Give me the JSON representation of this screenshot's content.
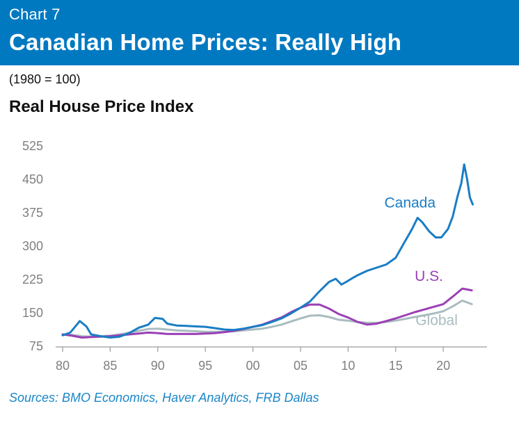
{
  "header": {
    "chart_number": "Chart 7",
    "title": "Canadian Home Prices: Really High"
  },
  "base_note": "(1980 = 100)",
  "subtitle": "Real House Price Index",
  "source": "Sources: BMO Economics, Haver Analytics, FRB Dallas",
  "colors": {
    "header_bg": "#0079c1",
    "canada": "#1a7dc4",
    "us": "#9b3fb5",
    "global": "#a9bcbf",
    "axis_text": "#7f7f7f"
  },
  "chart_data": {
    "type": "line",
    "title": "Real House Price Index",
    "ylim": [
      75,
      525
    ],
    "xlim": [
      1980,
      2023.5
    ],
    "yticks": [
      75,
      150,
      225,
      300,
      375,
      450,
      525
    ],
    "ytick_labels": [
      "75",
      "150",
      "225",
      "300",
      "375",
      "450",
      "525"
    ],
    "xticks": [
      1980,
      1985,
      1990,
      1995,
      2000,
      2005,
      2010,
      2015,
      2020
    ],
    "xtick_labels": [
      "80",
      "85",
      "90",
      "95",
      "00",
      "05",
      "10",
      "15",
      "20"
    ],
    "grid": false,
    "series": [
      {
        "name": "Canada",
        "label_year": 2016.5,
        "label_value": 385,
        "points": [
          [
            1980,
            98
          ],
          [
            1980.8,
            104
          ],
          [
            1981.5,
            122
          ],
          [
            1981.8,
            130
          ],
          [
            1982.5,
            118
          ],
          [
            1983,
            100
          ],
          [
            1984,
            96
          ],
          [
            1985,
            93
          ],
          [
            1986,
            95
          ],
          [
            1987,
            103
          ],
          [
            1988,
            115
          ],
          [
            1989,
            122
          ],
          [
            1989.7,
            137
          ],
          [
            1990.5,
            135
          ],
          [
            1991,
            124
          ],
          [
            1992,
            120
          ],
          [
            1993,
            119
          ],
          [
            1994,
            118
          ],
          [
            1995,
            117
          ],
          [
            1996,
            114
          ],
          [
            1997,
            111
          ],
          [
            1998,
            110
          ],
          [
            1999,
            113
          ],
          [
            2000,
            117
          ],
          [
            2001,
            121
          ],
          [
            2002,
            128
          ],
          [
            2003,
            136
          ],
          [
            2004,
            147
          ],
          [
            2005,
            160
          ],
          [
            2006,
            174
          ],
          [
            2007,
            197
          ],
          [
            2008,
            218
          ],
          [
            2008.7,
            225
          ],
          [
            2009.3,
            212
          ],
          [
            2009.8,
            218
          ],
          [
            2010.5,
            227
          ],
          [
            2011,
            233
          ],
          [
            2012,
            243
          ],
          [
            2013,
            250
          ],
          [
            2014,
            257
          ],
          [
            2015,
            272
          ],
          [
            2016,
            310
          ],
          [
            2016.7,
            336
          ],
          [
            2017.3,
            362
          ],
          [
            2017.8,
            352
          ],
          [
            2018.5,
            332
          ],
          [
            2019.2,
            318
          ],
          [
            2019.8,
            318
          ],
          [
            2020.5,
            337
          ],
          [
            2021,
            365
          ],
          [
            2021.5,
            410
          ],
          [
            2021.9,
            440
          ],
          [
            2022.2,
            482
          ],
          [
            2022.5,
            450
          ],
          [
            2022.8,
            408
          ],
          [
            2023.1,
            392
          ]
        ]
      },
      {
        "name": "U.S.",
        "label_year": 2018.5,
        "label_value": 220,
        "points": [
          [
            1980,
            100
          ],
          [
            1981,
            97
          ],
          [
            1982,
            93
          ],
          [
            1983,
            94
          ],
          [
            1984,
            95
          ],
          [
            1985,
            96
          ],
          [
            1986,
            98
          ],
          [
            1987,
            100
          ],
          [
            1988,
            102
          ],
          [
            1989,
            104
          ],
          [
            1990,
            103
          ],
          [
            1991,
            101
          ],
          [
            1992,
            101
          ],
          [
            1993,
            101
          ],
          [
            1994,
            101
          ],
          [
            1995,
            102
          ],
          [
            1996,
            103
          ],
          [
            1997,
            105
          ],
          [
            1998,
            108
          ],
          [
            1999,
            112
          ],
          [
            2000,
            117
          ],
          [
            2001,
            122
          ],
          [
            2002,
            130
          ],
          [
            2003,
            138
          ],
          [
            2004,
            150
          ],
          [
            2005,
            160
          ],
          [
            2006,
            167
          ],
          [
            2007,
            167
          ],
          [
            2008,
            158
          ],
          [
            2009,
            146
          ],
          [
            2010,
            138
          ],
          [
            2011,
            128
          ],
          [
            2012,
            122
          ],
          [
            2013,
            124
          ],
          [
            2014,
            130
          ],
          [
            2015,
            136
          ],
          [
            2016,
            143
          ],
          [
            2017,
            150
          ],
          [
            2018,
            156
          ],
          [
            2019,
            162
          ],
          [
            2020,
            168
          ],
          [
            2021,
            185
          ],
          [
            2022,
            203
          ],
          [
            2023,
            199
          ]
        ]
      },
      {
        "name": "Global",
        "label_year": 2019.3,
        "label_value": 121,
        "points": [
          [
            1980,
            100
          ],
          [
            1981,
            99
          ],
          [
            1982,
            96
          ],
          [
            1983,
            95
          ],
          [
            1984,
            96
          ],
          [
            1985,
            97
          ],
          [
            1986,
            100
          ],
          [
            1987,
            104
          ],
          [
            1988,
            108
          ],
          [
            1989,
            112
          ],
          [
            1990,
            113
          ],
          [
            1991,
            111
          ],
          [
            1992,
            109
          ],
          [
            1993,
            108
          ],
          [
            1994,
            107
          ],
          [
            1995,
            106
          ],
          [
            1996,
            106
          ],
          [
            1997,
            106
          ],
          [
            1998,
            107
          ],
          [
            1999,
            109
          ],
          [
            2000,
            111
          ],
          [
            2001,
            113
          ],
          [
            2002,
            117
          ],
          [
            2003,
            122
          ],
          [
            2004,
            129
          ],
          [
            2005,
            136
          ],
          [
            2006,
            142
          ],
          [
            2007,
            143
          ],
          [
            2008,
            139
          ],
          [
            2009,
            133
          ],
          [
            2010,
            131
          ],
          [
            2011,
            128
          ],
          [
            2012,
            126
          ],
          [
            2013,
            126
          ],
          [
            2014,
            128
          ],
          [
            2015,
            131
          ],
          [
            2016,
            135
          ],
          [
            2017,
            139
          ],
          [
            2018,
            143
          ],
          [
            2019,
            147
          ],
          [
            2020,
            152
          ],
          [
            2021,
            163
          ],
          [
            2022,
            176
          ],
          [
            2023,
            168
          ]
        ]
      }
    ]
  }
}
